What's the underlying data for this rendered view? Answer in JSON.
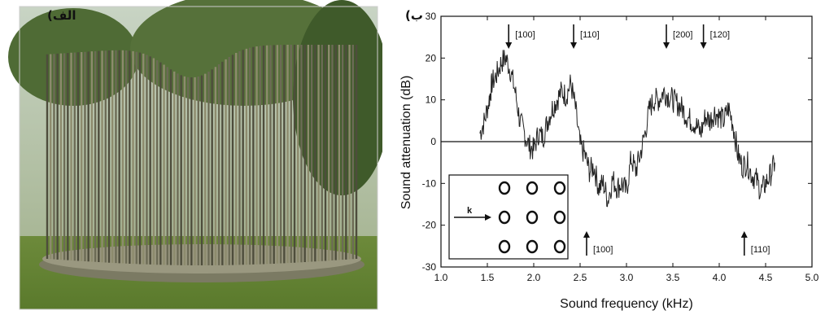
{
  "photo": {
    "label": "الف)",
    "subject_icon": "cylindrical-rod-sculpture"
  },
  "chart": {
    "label": "ب)",
    "colors": {
      "trace": "#222222",
      "axis": "#111111"
    }
  },
  "chart_data": {
    "type": "line",
    "xlabel": "Sound frequency (kHz)",
    "ylabel": "Sound attenuation (dB)",
    "xlim": [
      1.0,
      5.0
    ],
    "ylim": [
      -30,
      30
    ],
    "x_ticks": [
      "1.0",
      "1.5",
      "2.0",
      "2.5",
      "3.0",
      "3.5",
      "4.0",
      "4.5",
      "5.0"
    ],
    "y_ticks": [
      "-30",
      "-20",
      "-10",
      "0",
      "10",
      "20",
      "30"
    ],
    "reference_line_y": 0,
    "grid": false,
    "series": [
      {
        "x": [
          1.42,
          1.47,
          1.52,
          1.55,
          1.6,
          1.65,
          1.7,
          1.75,
          1.8,
          1.85,
          1.9,
          1.95,
          2.0,
          2.05,
          2.1,
          2.15,
          2.2,
          2.25,
          2.3,
          2.35,
          2.4,
          2.45,
          2.5,
          2.55,
          2.6,
          2.65,
          2.7,
          2.75,
          2.8,
          2.85,
          2.9,
          2.95,
          3.0,
          3.05,
          3.1,
          3.15,
          3.2,
          3.25,
          3.3,
          3.35,
          3.4,
          3.45,
          3.5,
          3.55,
          3.6,
          3.65,
          3.7,
          3.75,
          3.8,
          3.85,
          3.9,
          3.95,
          4.0,
          4.05,
          4.1,
          4.15,
          4.2,
          4.25,
          4.3,
          4.35,
          4.4,
          4.45,
          4.5,
          4.55,
          4.6
        ],
        "y": [
          2,
          5,
          10,
          14,
          16,
          19,
          20,
          17,
          12,
          5,
          2,
          -1,
          -2,
          2,
          1,
          5,
          8,
          10,
          12,
          11,
          14,
          8,
          -1,
          -3,
          -7,
          -6,
          -11,
          -10,
          -14,
          -9,
          -11,
          -10,
          -12,
          -4,
          -7,
          -3,
          2,
          8,
          10,
          10,
          12,
          11,
          10,
          9,
          8,
          6,
          5,
          4,
          2,
          6,
          5,
          7,
          6,
          5,
          8,
          4,
          -3,
          -6,
          -5,
          -8,
          -9,
          -12,
          -10,
          -8,
          -5
        ]
      }
    ],
    "annotations": [
      {
        "text": "[100]",
        "x": 1.73,
        "direction": "down"
      },
      {
        "text": "[110]",
        "x": 2.43,
        "direction": "down"
      },
      {
        "text": "[200]",
        "x": 3.43,
        "direction": "down"
      },
      {
        "text": "[120]",
        "x": 3.83,
        "direction": "down"
      },
      {
        "text": "[100]",
        "x": 2.57,
        "direction": "up"
      },
      {
        "text": "[110]",
        "x": 4.27,
        "direction": "up"
      }
    ],
    "inset": {
      "label": "k",
      "grid_rows": 3,
      "grid_cols": 3
    }
  }
}
